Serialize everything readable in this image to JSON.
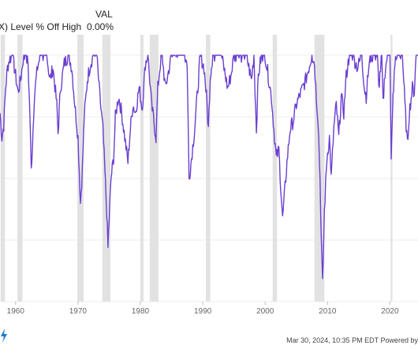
{
  "legend": {
    "column_header": "VAL",
    "series_label": "X) Level % Off High",
    "series_value": "0.00%"
  },
  "footer": {
    "text": "Mar 30, 2024, 10:35 PM EDT Powered by"
  },
  "chart_data": {
    "type": "line",
    "title": "",
    "xlabel": "",
    "ylabel": "",
    "x_tick_labels": [
      "1960",
      "1970",
      "1980",
      "1990",
      "2000",
      "2010",
      "2020"
    ],
    "xlim": [
      1957.5,
      2024.5
    ],
    "ylim": [
      -60,
      5
    ],
    "grid": true,
    "line_color": "#6a3fd0",
    "recession_color": "#e2e2e2",
    "recessions": [
      [
        1957.6,
        1958.3
      ],
      [
        1960.3,
        1961.1
      ],
      [
        1969.9,
        1970.9
      ],
      [
        1973.9,
        1975.2
      ],
      [
        1980.0,
        1980.5
      ],
      [
        1981.5,
        1982.9
      ],
      [
        1990.5,
        1991.2
      ],
      [
        2001.2,
        2001.9
      ],
      [
        2007.9,
        2009.5
      ],
      [
        2020.1,
        2020.4
      ]
    ],
    "series": [
      {
        "values": [
          [
            1957.5,
            -14
          ],
          [
            1957.8,
            -20
          ],
          [
            1958.1,
            -17
          ],
          [
            1958.4,
            -8
          ],
          [
            1958.7,
            -3
          ],
          [
            1959.0,
            -1
          ],
          [
            1959.5,
            0
          ],
          [
            1960.0,
            -5
          ],
          [
            1960.4,
            -9
          ],
          [
            1960.8,
            -6
          ],
          [
            1961.2,
            -1
          ],
          [
            1961.6,
            0
          ],
          [
            1962.0,
            -2
          ],
          [
            1962.3,
            -15
          ],
          [
            1962.5,
            -28
          ],
          [
            1962.7,
            -22
          ],
          [
            1963.0,
            -10
          ],
          [
            1963.5,
            -3
          ],
          [
            1964.0,
            0
          ],
          [
            1965.0,
            0
          ],
          [
            1965.5,
            -6
          ],
          [
            1966.0,
            -3
          ],
          [
            1966.6,
            -12
          ],
          [
            1966.8,
            -19
          ],
          [
            1967.2,
            -8
          ],
          [
            1967.8,
            -2
          ],
          [
            1968.5,
            0
          ],
          [
            1969.0,
            -3
          ],
          [
            1969.5,
            -12
          ],
          [
            1970.0,
            -20
          ],
          [
            1970.4,
            -36
          ],
          [
            1970.7,
            -28
          ],
          [
            1971.0,
            -15
          ],
          [
            1971.5,
            -6
          ],
          [
            1972.0,
            -2
          ],
          [
            1972.5,
            0
          ],
          [
            1973.0,
            0
          ],
          [
            1973.5,
            -10
          ],
          [
            1974.0,
            -18
          ],
          [
            1974.3,
            -28
          ],
          [
            1974.6,
            -38
          ],
          [
            1974.8,
            -47
          ],
          [
            1975.0,
            -40
          ],
          [
            1975.3,
            -30
          ],
          [
            1975.7,
            -25
          ],
          [
            1976.0,
            -15
          ],
          [
            1976.5,
            -10
          ],
          [
            1977.0,
            -14
          ],
          [
            1977.5,
            -20
          ],
          [
            1978.0,
            -26
          ],
          [
            1978.4,
            -18
          ],
          [
            1978.8,
            -12
          ],
          [
            1979.2,
            -14
          ],
          [
            1979.8,
            -8
          ],
          [
            1980.3,
            -13
          ],
          [
            1980.8,
            -2
          ],
          [
            1981.2,
            0
          ],
          [
            1981.8,
            -12
          ],
          [
            1982.5,
            -20
          ],
          [
            1982.8,
            -8
          ],
          [
            1983.2,
            -2
          ],
          [
            1983.5,
            0
          ],
          [
            1984.0,
            -8
          ],
          [
            1984.5,
            -4
          ],
          [
            1985.0,
            0
          ],
          [
            1986.0,
            0
          ],
          [
            1987.0,
            0
          ],
          [
            1987.5,
            -2
          ],
          [
            1987.8,
            -30
          ],
          [
            1988.2,
            -25
          ],
          [
            1988.7,
            -18
          ],
          [
            1989.2,
            -8
          ],
          [
            1989.6,
            0
          ],
          [
            1990.2,
            -3
          ],
          [
            1990.6,
            -10
          ],
          [
            1990.9,
            -18
          ],
          [
            1991.2,
            -5
          ],
          [
            1991.6,
            0
          ],
          [
            1992.0,
            0
          ],
          [
            1993.0,
            0
          ],
          [
            1994.0,
            -8
          ],
          [
            1994.5,
            -5
          ],
          [
            1995.0,
            0
          ],
          [
            1996.0,
            0
          ],
          [
            1997.0,
            0
          ],
          [
            1997.8,
            -6
          ],
          [
            1998.2,
            0
          ],
          [
            1998.6,
            -18
          ],
          [
            1998.9,
            -5
          ],
          [
            1999.4,
            0
          ],
          [
            2000.0,
            0
          ],
          [
            2000.5,
            -5
          ],
          [
            2001.0,
            -10
          ],
          [
            2001.5,
            -20
          ],
          [
            2001.8,
            -25
          ],
          [
            2002.2,
            -23
          ],
          [
            2002.5,
            -32
          ],
          [
            2002.8,
            -40
          ],
          [
            2003.1,
            -34
          ],
          [
            2003.5,
            -26
          ],
          [
            2004.0,
            -18
          ],
          [
            2004.5,
            -16
          ],
          [
            2005.0,
            -12
          ],
          [
            2005.5,
            -10
          ],
          [
            2006.0,
            -8
          ],
          [
            2006.5,
            -6
          ],
          [
            2007.0,
            -3
          ],
          [
            2007.5,
            0
          ],
          [
            2007.9,
            -2
          ],
          [
            2008.2,
            -10
          ],
          [
            2008.5,
            -16
          ],
          [
            2008.8,
            -30
          ],
          [
            2009.0,
            -45
          ],
          [
            2009.2,
            -56
          ],
          [
            2009.5,
            -38
          ],
          [
            2009.9,
            -25
          ],
          [
            2010.3,
            -20
          ],
          [
            2010.6,
            -30
          ],
          [
            2011.0,
            -18
          ],
          [
            2011.4,
            -12
          ],
          [
            2011.8,
            -20
          ],
          [
            2012.2,
            -10
          ],
          [
            2012.6,
            -14
          ],
          [
            2013.0,
            -5
          ],
          [
            2013.5,
            0
          ],
          [
            2014.0,
            0
          ],
          [
            2014.8,
            -3
          ],
          [
            2015.5,
            0
          ],
          [
            2015.9,
            -8
          ],
          [
            2016.2,
            -10
          ],
          [
            2016.6,
            -3
          ],
          [
            2017.0,
            0
          ],
          [
            2018.0,
            0
          ],
          [
            2018.2,
            -8
          ],
          [
            2018.7,
            0
          ],
          [
            2018.9,
            -12
          ],
          [
            2019.2,
            -4
          ],
          [
            2019.6,
            0
          ],
          [
            2020.0,
            0
          ],
          [
            2020.2,
            -26
          ],
          [
            2020.5,
            -10
          ],
          [
            2020.9,
            0
          ],
          [
            2021.5,
            0
          ],
          [
            2022.0,
            0
          ],
          [
            2022.4,
            -12
          ],
          [
            2022.8,
            -22
          ],
          [
            2023.1,
            -14
          ],
          [
            2023.6,
            -8
          ],
          [
            2023.9,
            -9
          ],
          [
            2024.2,
            0
          ],
          [
            2024.5,
            0
          ]
        ]
      }
    ]
  }
}
